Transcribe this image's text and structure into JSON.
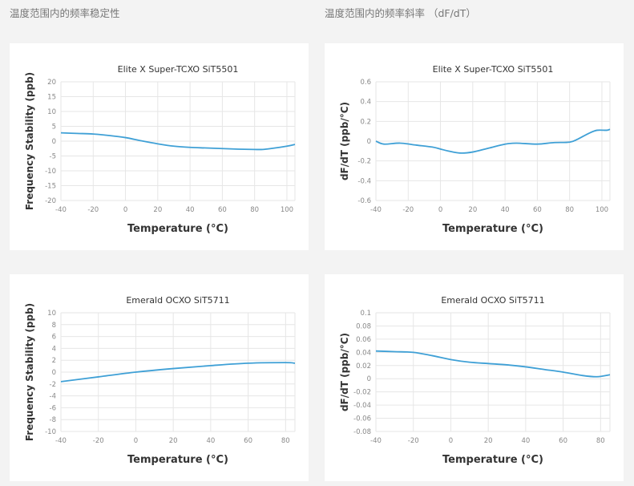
{
  "headers": {
    "left": "温度范围内的频率稳定性",
    "right": "温度范围内的频率斜率 （dF/dT）"
  },
  "line_color": "#3fa0d6",
  "chart_data": [
    {
      "type": "line",
      "title": "Elite X Super-TCXO SiT5501",
      "xlabel": "Temperature (°C)",
      "ylabel": "Frequency Stability (ppb)",
      "xlim": [
        -40,
        105
      ],
      "ylim": [
        -20,
        20
      ],
      "xticks": [
        -40,
        -20,
        0,
        20,
        40,
        60,
        80,
        100
      ],
      "yticks": [
        -20,
        -15,
        -10,
        -5,
        0,
        5,
        10,
        15,
        20
      ],
      "grid": true,
      "points": [
        [
          -40,
          2.8
        ],
        [
          -30,
          2.6
        ],
        [
          -20,
          2.4
        ],
        [
          -10,
          1.9
        ],
        [
          0,
          1.2
        ],
        [
          10,
          0.1
        ],
        [
          20,
          -0.9
        ],
        [
          30,
          -1.7
        ],
        [
          40,
          -2.1
        ],
        [
          50,
          -2.3
        ],
        [
          60,
          -2.5
        ],
        [
          70,
          -2.7
        ],
        [
          80,
          -2.8
        ],
        [
          85,
          -2.8
        ],
        [
          90,
          -2.5
        ],
        [
          100,
          -1.7
        ],
        [
          105,
          -1.1
        ]
      ]
    },
    {
      "type": "line",
      "title": "Elite X Super-TCXO SiT5501",
      "xlabel": "Temperature (°C)",
      "ylabel": "dF/dT (ppb/°C)",
      "xlim": [
        -40,
        105
      ],
      "ylim": [
        -0.6,
        0.6
      ],
      "xticks": [
        -40,
        -20,
        0,
        20,
        40,
        60,
        80,
        100
      ],
      "yticks": [
        -0.6,
        -0.4,
        -0.2,
        0,
        0.2,
        0.4,
        0.6
      ],
      "grid": true,
      "points": [
        [
          -40,
          0
        ],
        [
          -35,
          -0.03
        ],
        [
          -25,
          -0.02
        ],
        [
          -15,
          -0.04
        ],
        [
          -5,
          -0.06
        ],
        [
          0,
          -0.08
        ],
        [
          5,
          -0.1
        ],
        [
          12,
          -0.12
        ],
        [
          20,
          -0.11
        ],
        [
          30,
          -0.07
        ],
        [
          40,
          -0.03
        ],
        [
          47,
          -0.02
        ],
        [
          60,
          -0.03
        ],
        [
          70,
          -0.015
        ],
        [
          80,
          -0.01
        ],
        [
          85,
          0.02
        ],
        [
          92,
          0.08
        ],
        [
          97,
          0.11
        ],
        [
          103,
          0.11
        ],
        [
          105,
          0.12
        ]
      ]
    },
    {
      "type": "line",
      "title": "Emerald OCXO SiT5711",
      "xlabel": "Temperature (°C)",
      "ylabel": "Frequency Stability (ppb)",
      "xlim": [
        -40,
        85
      ],
      "ylim": [
        -10,
        10
      ],
      "xticks": [
        -40,
        -20,
        0,
        20,
        40,
        60,
        80
      ],
      "yticks": [
        -10,
        -8,
        -6,
        -4,
        -2,
        0,
        2,
        4,
        6,
        8,
        10
      ],
      "grid": true,
      "points": [
        [
          -40,
          -1.6
        ],
        [
          -20,
          -0.8
        ],
        [
          0,
          0
        ],
        [
          20,
          0.6
        ],
        [
          40,
          1.1
        ],
        [
          60,
          1.5
        ],
        [
          80,
          1.6
        ],
        [
          85,
          1.5
        ]
      ]
    },
    {
      "type": "line",
      "title": "Emerald OCXO SiT5711",
      "xlabel": "Temperature (°C)",
      "ylabel": "dF/dT (ppb/°C)",
      "xlim": [
        -40,
        85
      ],
      "ylim": [
        -0.08,
        0.1
      ],
      "xticks": [
        -40,
        -20,
        0,
        20,
        40,
        60,
        80
      ],
      "yticks": [
        -0.08,
        -0.06,
        -0.04,
        -0.02,
        0,
        0.02,
        0.04,
        0.06,
        0.08,
        0.1
      ],
      "grid": true,
      "points": [
        [
          -40,
          0.042
        ],
        [
          -30,
          0.041
        ],
        [
          -20,
          0.04
        ],
        [
          -10,
          0.035
        ],
        [
          0,
          0.029
        ],
        [
          10,
          0.025
        ],
        [
          20,
          0.023
        ],
        [
          30,
          0.021
        ],
        [
          40,
          0.018
        ],
        [
          50,
          0.014
        ],
        [
          60,
          0.01
        ],
        [
          70,
          0.005
        ],
        [
          78,
          0.003
        ],
        [
          85,
          0.006
        ]
      ]
    }
  ]
}
